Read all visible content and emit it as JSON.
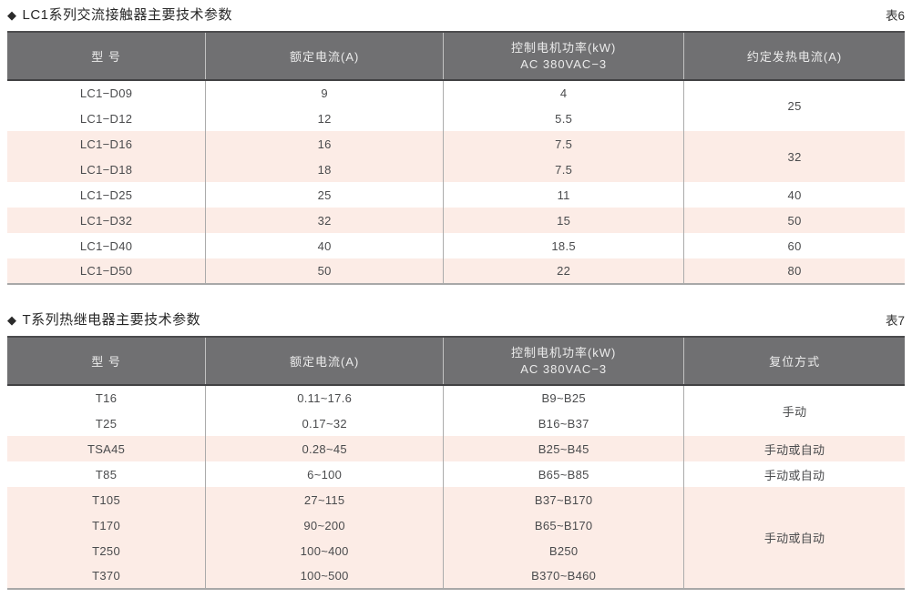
{
  "tables": [
    {
      "bullet": "◆",
      "title": "LC1系列交流接触器主要技术参数",
      "tag": "表6",
      "headers": {
        "model": "型  号",
        "rated_current": "额定电流(A)",
        "motor_power_line1": "控制电机功率(kW)",
        "motor_power_line2": "AC 380VAC−3",
        "heating_current": "约定发热电流(A)"
      },
      "rows": [
        {
          "model": "LC1−D09",
          "rated": "9",
          "power": "4",
          "heating": "25"
        },
        {
          "model": "LC1−D12",
          "rated": "12",
          "power": "5.5"
        },
        {
          "model": "LC1−D16",
          "rated": "16",
          "power": "7.5",
          "heating": "32"
        },
        {
          "model": "LC1−D18",
          "rated": "18",
          "power": "7.5"
        },
        {
          "model": "LC1−D25",
          "rated": "25",
          "power": "11",
          "heating": "40"
        },
        {
          "model": "LC1−D32",
          "rated": "32",
          "power": "15",
          "heating": "50"
        },
        {
          "model": "LC1−D40",
          "rated": "40",
          "power": "18.5",
          "heating": "60"
        },
        {
          "model": "LC1−D50",
          "rated": "50",
          "power": "22",
          "heating": "80"
        }
      ]
    },
    {
      "bullet": "◆",
      "title": "T系列热继电器主要技术参数",
      "tag": "表7",
      "headers": {
        "model": "型  号",
        "rated_current": "额定电流(A)",
        "motor_power_line1": "控制电机功率(kW)",
        "motor_power_line2": "AC 380VAC−3",
        "reset_mode": "复位方式"
      },
      "rows": [
        {
          "model": "T16",
          "rated": "0.11~17.6",
          "power": "B9~B25",
          "reset": "手动"
        },
        {
          "model": "T25",
          "rated": "0.17~32",
          "power": "B16~B37"
        },
        {
          "model": "TSA45",
          "rated": "0.28~45",
          "power": "B25~B45",
          "reset": "手动或自动"
        },
        {
          "model": "T85",
          "rated": "6~100",
          "power": "B65~B85",
          "reset": "手动或自动"
        },
        {
          "model": "T105",
          "rated": "27~115",
          "power": "B37~B170",
          "reset": "手动或自动"
        },
        {
          "model": "T170",
          "rated": "90~200",
          "power": "B65~B170"
        },
        {
          "model": "T250",
          "rated": "100~400",
          "power": "B250"
        },
        {
          "model": "T370",
          "rated": "100~500",
          "power": "B370~B460"
        }
      ]
    }
  ],
  "colors": {
    "header_bg": "#707072",
    "header_text": "#ececec",
    "pink_row_bg": "#fcece6",
    "body_text": "#4a4b4d",
    "table_bottom_border": "#a8a8a8"
  }
}
